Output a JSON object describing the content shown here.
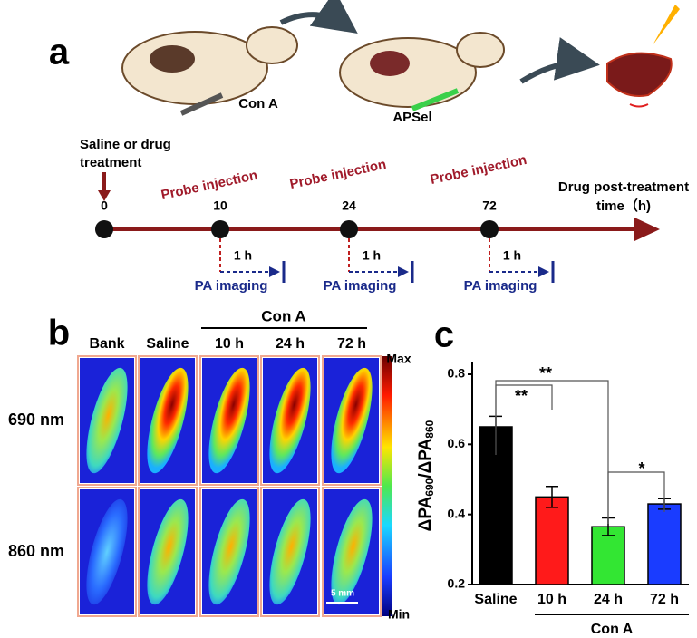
{
  "panel_a": {
    "label": "a",
    "drug1": "Con A",
    "drug2": "APSel",
    "start_label": [
      "Saline or drug",
      "treatment"
    ],
    "timepoints": [
      "0",
      "10",
      "24",
      "72"
    ],
    "probe_injection": [
      "Probe injection",
      "Probe injection",
      "Probe injection"
    ],
    "delay": [
      "1 h",
      "1 h",
      "1 h"
    ],
    "imaging": [
      "PA imaging",
      "PA imaging",
      "PA imaging"
    ],
    "axis_title": [
      "Drug post-treatment",
      "time（h)"
    ]
  },
  "panel_b": {
    "label": "b",
    "columns": [
      "Bank",
      "Saline",
      "10 h",
      "24 h",
      "72 h"
    ],
    "group": "Con A",
    "rows": [
      "690 nm",
      "860 nm"
    ],
    "colorbar_max": "Max",
    "colorbar_min": "Min",
    "scale_bar": "5 mm"
  },
  "chart_data": {
    "type": "bar",
    "panel_label": "c",
    "y_label_parts": [
      "ΔPA",
      "690",
      "/ΔPA",
      "860"
    ],
    "categories": [
      "Saline",
      "10 h",
      "24 h",
      "72 h"
    ],
    "series": [
      {
        "values": [
          0.65,
          0.45,
          0.365,
          0.43
        ],
        "errors": [
          0.03,
          0.03,
          0.025,
          0.015
        ],
        "colors": [
          "#000000",
          "#ff1a1a",
          "#33e633",
          "#1a3cff"
        ]
      }
    ],
    "ylim": [
      0.2,
      0.8
    ],
    "yticks": [
      0.2,
      0.4,
      0.6,
      0.8
    ],
    "group_label": "Con A",
    "annotations": [
      "**",
      "**",
      "*"
    ]
  }
}
